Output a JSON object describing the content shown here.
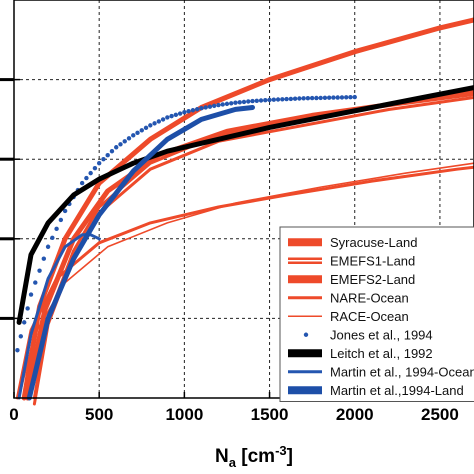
{
  "chart_data": {
    "type": "line",
    "title": "",
    "xlabel": "N",
    "xlabel_sub": "a",
    "xlabel_unit_open": " [cm",
    "xlabel_unit_sup": "-3",
    "xlabel_unit_close": "]",
    "ylabel": "",
    "xlim": [
      0,
      2700
    ],
    "ylim": [
      0,
      1000
    ],
    "x_ticks": [
      0,
      500,
      1000,
      1500,
      2000,
      2500
    ],
    "x_tick_labels": [
      "0",
      "500",
      "1000",
      "1500",
      "2000",
      "2500"
    ],
    "y_ticks": [
      200,
      400,
      600,
      800
    ],
    "grid": true,
    "grid_style": "dashed",
    "legend_position": "lower-right",
    "series": [
      {
        "name": "Syracuse-Land",
        "color": "#ee4a2a",
        "style": "thick-line",
        "x": [
          60,
          150,
          300,
          500,
          800,
          1100,
          1500,
          2000,
          2500,
          2700
        ],
        "y": [
          0,
          230,
          400,
          540,
          650,
          730,
          800,
          870,
          930,
          950
        ]
      },
      {
        "name": "EMEFS1-Land",
        "color": "#ee4a2a",
        "style": "double-line",
        "x": [
          120,
          200,
          350,
          500,
          800,
          1200,
          1700,
          2200,
          2700
        ],
        "y": [
          0,
          200,
          370,
          480,
          590,
          660,
          700,
          740,
          770
        ]
      },
      {
        "name": "EMEFS2-Land",
        "color": "#ee4a2a",
        "style": "thick-line",
        "x": [
          80,
          180,
          350,
          550,
          850,
          1250,
          1750,
          2250,
          2700
        ],
        "y": [
          0,
          220,
          400,
          520,
          610,
          670,
          710,
          740,
          765
        ]
      },
      {
        "name": "NARE-Ocean",
        "color": "#ee4a2a",
        "style": "line",
        "x": [
          20,
          100,
          250,
          500,
          800,
          1200,
          1600,
          2100,
          2600,
          2700
        ],
        "y": [
          0,
          170,
          300,
          390,
          440,
          480,
          510,
          545,
          575,
          580
        ]
      },
      {
        "name": "RACE-Ocean",
        "color": "#ee4a2a",
        "style": "thin-line",
        "x": [
          30,
          120,
          300,
          550,
          900,
          1300,
          1800,
          2300,
          2700
        ],
        "y": [
          0,
          160,
          290,
          380,
          440,
          490,
          530,
          565,
          590
        ]
      },
      {
        "name": "Jones et al., 1994",
        "color": "#2456b0",
        "style": "dots",
        "x": [
          20,
          100,
          200,
          300,
          400,
          500,
          600,
          700,
          800,
          900,
          1000,
          1100,
          1200,
          1300,
          1400,
          1500,
          1600,
          1700,
          1800,
          1900,
          2000
        ],
        "y": [
          120,
          260,
          380,
          470,
          540,
          590,
          630,
          660,
          685,
          705,
          718,
          728,
          736,
          742,
          746,
          749,
          751,
          753,
          754,
          755,
          756
        ]
      },
      {
        "name": "Leitch et al., 1992",
        "color": "#000000",
        "style": "thick-line",
        "x": [
          30,
          100,
          200,
          350,
          500,
          700,
          900,
          1200,
          1500,
          1800,
          2100,
          2400,
          2700
        ],
        "y": [
          190,
          360,
          440,
          510,
          550,
          590,
          620,
          650,
          680,
          705,
          730,
          755,
          780
        ]
      },
      {
        "name": "Martin et al., 1994-Ocean",
        "color": "#2456b0",
        "style": "line",
        "x": [
          30,
          100,
          200,
          300,
          400,
          450,
          500
        ],
        "y": [
          0,
          160,
          300,
          380,
          410,
          410,
          400
        ]
      },
      {
        "name": "Martin et al.,1994-Land",
        "color": "#1d4fa8",
        "style": "thick-line",
        "x": [
          90,
          200,
          350,
          500,
          700,
          900,
          1100,
          1300,
          1400
        ],
        "y": [
          0,
          200,
          350,
          460,
          570,
          650,
          700,
          725,
          730
        ]
      }
    ]
  }
}
